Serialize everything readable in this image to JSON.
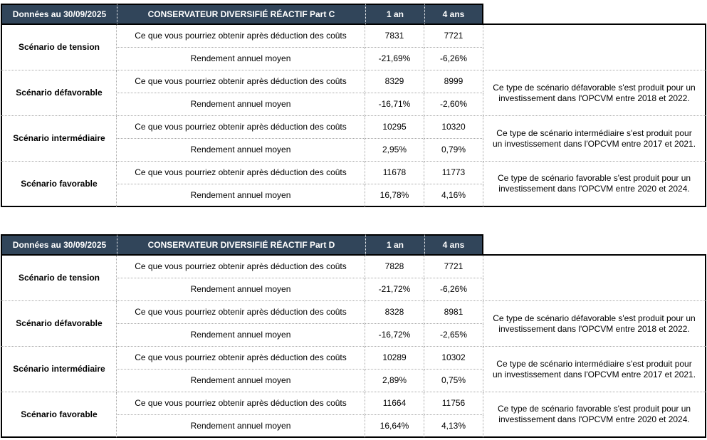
{
  "colors": {
    "header_bg": "#31455A",
    "header_text": "#ffffff",
    "border": "#000000",
    "dotted": "#a9a9a9"
  },
  "tables": [
    {
      "date_label": "Données au 30/09/2025",
      "title": "CONSERVATEUR DIVERSIFIÉ RÉACTIF Part C",
      "col_1an": "1 an",
      "col_4ans": "4 ans",
      "obtain_label": "Ce que vous pourriez obtenir après déduction des coûts",
      "rendement_label": "Rendement annuel moyen",
      "scenarios": [
        {
          "name": "Scénario de tension",
          "obtain_1an": "7831",
          "obtain_4ans": "7721",
          "rendement_1an": "-21,69%",
          "rendement_4ans": "-6,26%",
          "note": ""
        },
        {
          "name": "Scénario défavorable",
          "obtain_1an": "8329",
          "obtain_4ans": "8999",
          "rendement_1an": "-16,71%",
          "rendement_4ans": "-2,60%",
          "note": "Ce type de scénario défavorable s'est produit pour un investissement dans l'OPCVM entre 2018 et 2022."
        },
        {
          "name": "Scénario intermédiaire",
          "obtain_1an": "10295",
          "obtain_4ans": "10320",
          "rendement_1an": "2,95%",
          "rendement_4ans": "0,79%",
          "note": "Ce type de scénario intermédiaire s'est produit pour un investissement dans l'OPCVM entre 2017 et 2021."
        },
        {
          "name": "Scénario favorable",
          "obtain_1an": "11678",
          "obtain_4ans": "11773",
          "rendement_1an": "16,78%",
          "rendement_4ans": "4,16%",
          "note": "Ce type de scénario favorable s'est produit pour un investissement dans l'OPCVM entre 2020 et 2024."
        }
      ]
    },
    {
      "date_label": "Données au 30/09/2025",
      "title": "CONSERVATEUR DIVERSIFIÉ RÉACTIF Part D",
      "col_1an": "1 an",
      "col_4ans": "4 ans",
      "obtain_label": "Ce que vous pourriez obtenir après déduction des coûts",
      "rendement_label": "Rendement annuel moyen",
      "scenarios": [
        {
          "name": "Scénario de tension",
          "obtain_1an": "7828",
          "obtain_4ans": "7721",
          "rendement_1an": "-21,72%",
          "rendement_4ans": "-6,26%",
          "note": ""
        },
        {
          "name": "Scénario défavorable",
          "obtain_1an": "8328",
          "obtain_4ans": "8981",
          "rendement_1an": "-16,72%",
          "rendement_4ans": "-2,65%",
          "note": "Ce type de scénario défavorable s'est produit pour un investissement dans l'OPCVM entre 2018 et 2022."
        },
        {
          "name": "Scénario intermédiaire",
          "obtain_1an": "10289",
          "obtain_4ans": "10302",
          "rendement_1an": "2,89%",
          "rendement_4ans": "0,75%",
          "note": "Ce type de scénario intermédiaire s'est produit pour un investissement dans l'OPCVM entre 2017 et 2021."
        },
        {
          "name": "Scénario favorable",
          "obtain_1an": "11664",
          "obtain_4ans": "11756",
          "rendement_1an": "16,64%",
          "rendement_4ans": "4,13%",
          "note": "Ce type de scénario favorable s'est produit pour un investissement dans l'OPCVM entre 2020 et 2024."
        }
      ]
    }
  ]
}
